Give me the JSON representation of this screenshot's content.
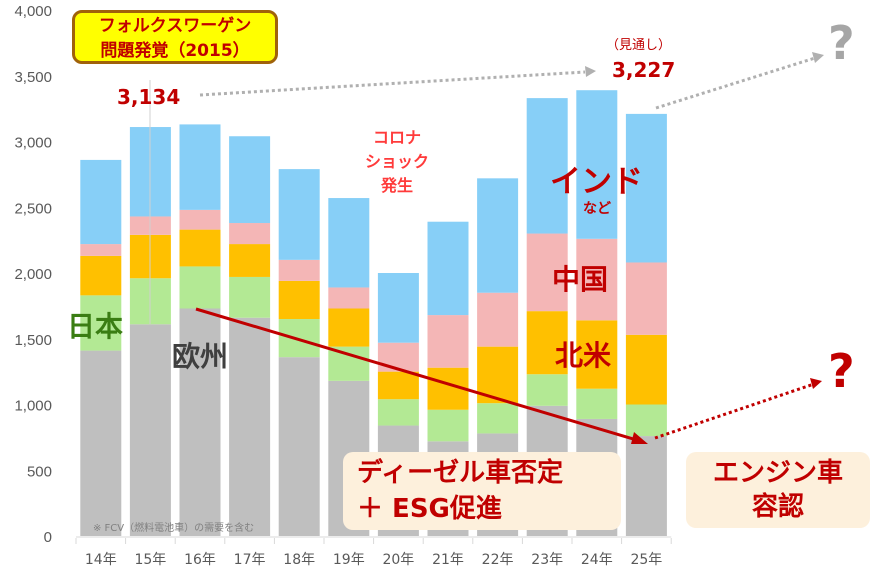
{
  "chart_data": {
    "type": "bar",
    "stacked": true,
    "categories": [
      "14年",
      "15年",
      "16年",
      "17年",
      "18年",
      "19年",
      "20年",
      "21年",
      "22年",
      "23年",
      "24年",
      "25年"
    ],
    "series": [
      {
        "name": "欧州",
        "color": "#bfbfbf",
        "values": [
          1410,
          1610,
          1730,
          1660,
          1360,
          1180,
          840,
          720,
          780,
          990,
          890,
          760
        ]
      },
      {
        "name": "日本",
        "color": "#b3e994",
        "values": [
          420,
          350,
          320,
          310,
          290,
          260,
          200,
          240,
          230,
          240,
          230,
          240
        ]
      },
      {
        "name": "北米",
        "color": "#ffc000",
        "values": [
          300,
          330,
          280,
          250,
          290,
          290,
          210,
          320,
          430,
          480,
          520,
          530
        ]
      },
      {
        "name": "中国",
        "color": "#f4b6b6",
        "values": [
          90,
          140,
          150,
          160,
          160,
          160,
          220,
          400,
          410,
          590,
          620,
          550
        ]
      },
      {
        "name": "インド",
        "color": "#87cff7",
        "values": [
          640,
          680,
          650,
          660,
          690,
          680,
          530,
          710,
          870,
          1030,
          1130,
          1130
        ]
      }
    ],
    "ylim": [
      0,
      4000
    ],
    "yticks": [
      "0",
      "500",
      "1,000",
      "1,500",
      "2,000",
      "2,500",
      "3,000",
      "3,500",
      "4,000"
    ],
    "grid": false,
    "legend": "inline labels"
  },
  "annotations": {
    "vw_line1": "フォルクスワーゲン",
    "vw_line2": "問題発覚（2015）",
    "value_2015": "3,134",
    "forecast_label": "（見通し）",
    "value_2025": "3,227",
    "corona_line1": "コロナ",
    "corona_line2": "ショック",
    "corona_line3": "発生",
    "india": "インド",
    "india_sub": "など",
    "china": "中国",
    "north_america": "北米",
    "japan": "日本",
    "europe": "欧州",
    "note": "※ FCV（燃料電池車）の需要を含む",
    "box1_line1": "ディーゼル車否定",
    "box1_line2": "＋ ESG促進",
    "box2_line1": "エンジン車",
    "box2_line2": "容認",
    "question_gray": "?",
    "question_red": "?"
  }
}
